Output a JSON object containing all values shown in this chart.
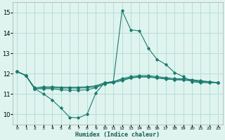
{
  "bg_color": "#dff4ef",
  "grid_color": "#b8ddd6",
  "line_color": "#1a7a6e",
  "xlabel": "Humidex (Indice chaleur)",
  "xlim": [
    -0.5,
    23.5
  ],
  "ylim": [
    9.5,
    15.5
  ],
  "yticks": [
    10,
    11,
    12,
    13,
    14,
    15
  ],
  "xticks": [
    0,
    1,
    2,
    3,
    4,
    5,
    6,
    7,
    8,
    9,
    10,
    11,
    12,
    13,
    14,
    15,
    16,
    17,
    18,
    19,
    20,
    21,
    22,
    23
  ],
  "series": [
    {
      "x": [
        0,
        1,
        2,
        3,
        4,
        5,
        6,
        7,
        8,
        9,
        10,
        11,
        12,
        13,
        14,
        15,
        16,
        17,
        18,
        19,
        20,
        21,
        22,
        23
      ],
      "y": [
        12.1,
        11.9,
        11.25,
        11.0,
        10.7,
        10.3,
        9.85,
        9.82,
        10.0,
        11.05,
        11.55,
        11.6,
        15.1,
        14.15,
        14.1,
        13.25,
        12.7,
        12.45,
        12.05,
        11.85,
        11.6,
        11.55,
        11.55,
        11.55
      ]
    },
    {
      "x": [
        0,
        1,
        2,
        3,
        4,
        5,
        6,
        7,
        8,
        9,
        10,
        11,
        12,
        13,
        14,
        15,
        16,
        17,
        18,
        19,
        20,
        21,
        22,
        23
      ],
      "y": [
        12.1,
        11.9,
        11.25,
        11.25,
        11.25,
        11.2,
        11.18,
        11.18,
        11.2,
        11.3,
        11.5,
        11.6,
        11.75,
        11.85,
        11.9,
        11.9,
        11.85,
        11.8,
        11.75,
        11.75,
        11.7,
        11.65,
        11.6,
        11.55
      ]
    },
    {
      "x": [
        0,
        1,
        2,
        3,
        4,
        5,
        6,
        7,
        8,
        9,
        10,
        11,
        12,
        13,
        14,
        15,
        16,
        17,
        18,
        19,
        20,
        21,
        22,
        23
      ],
      "y": [
        12.1,
        11.9,
        11.25,
        11.3,
        11.3,
        11.28,
        11.28,
        11.28,
        11.3,
        11.35,
        11.5,
        11.55,
        11.65,
        11.78,
        11.83,
        11.83,
        11.78,
        11.73,
        11.7,
        11.68,
        11.65,
        11.6,
        11.58,
        11.55
      ]
    },
    {
      "x": [
        0,
        1,
        2,
        3,
        4,
        5,
        6,
        7,
        8,
        9,
        10,
        11,
        12,
        13,
        14,
        15,
        16,
        17,
        18,
        19,
        20,
        21,
        22,
        23
      ],
      "y": [
        12.1,
        11.9,
        11.3,
        11.35,
        11.35,
        11.33,
        11.33,
        11.33,
        11.35,
        11.4,
        11.55,
        11.6,
        11.7,
        11.8,
        11.85,
        11.85,
        11.8,
        11.75,
        11.7,
        11.7,
        11.65,
        11.6,
        11.6,
        11.55
      ]
    }
  ]
}
